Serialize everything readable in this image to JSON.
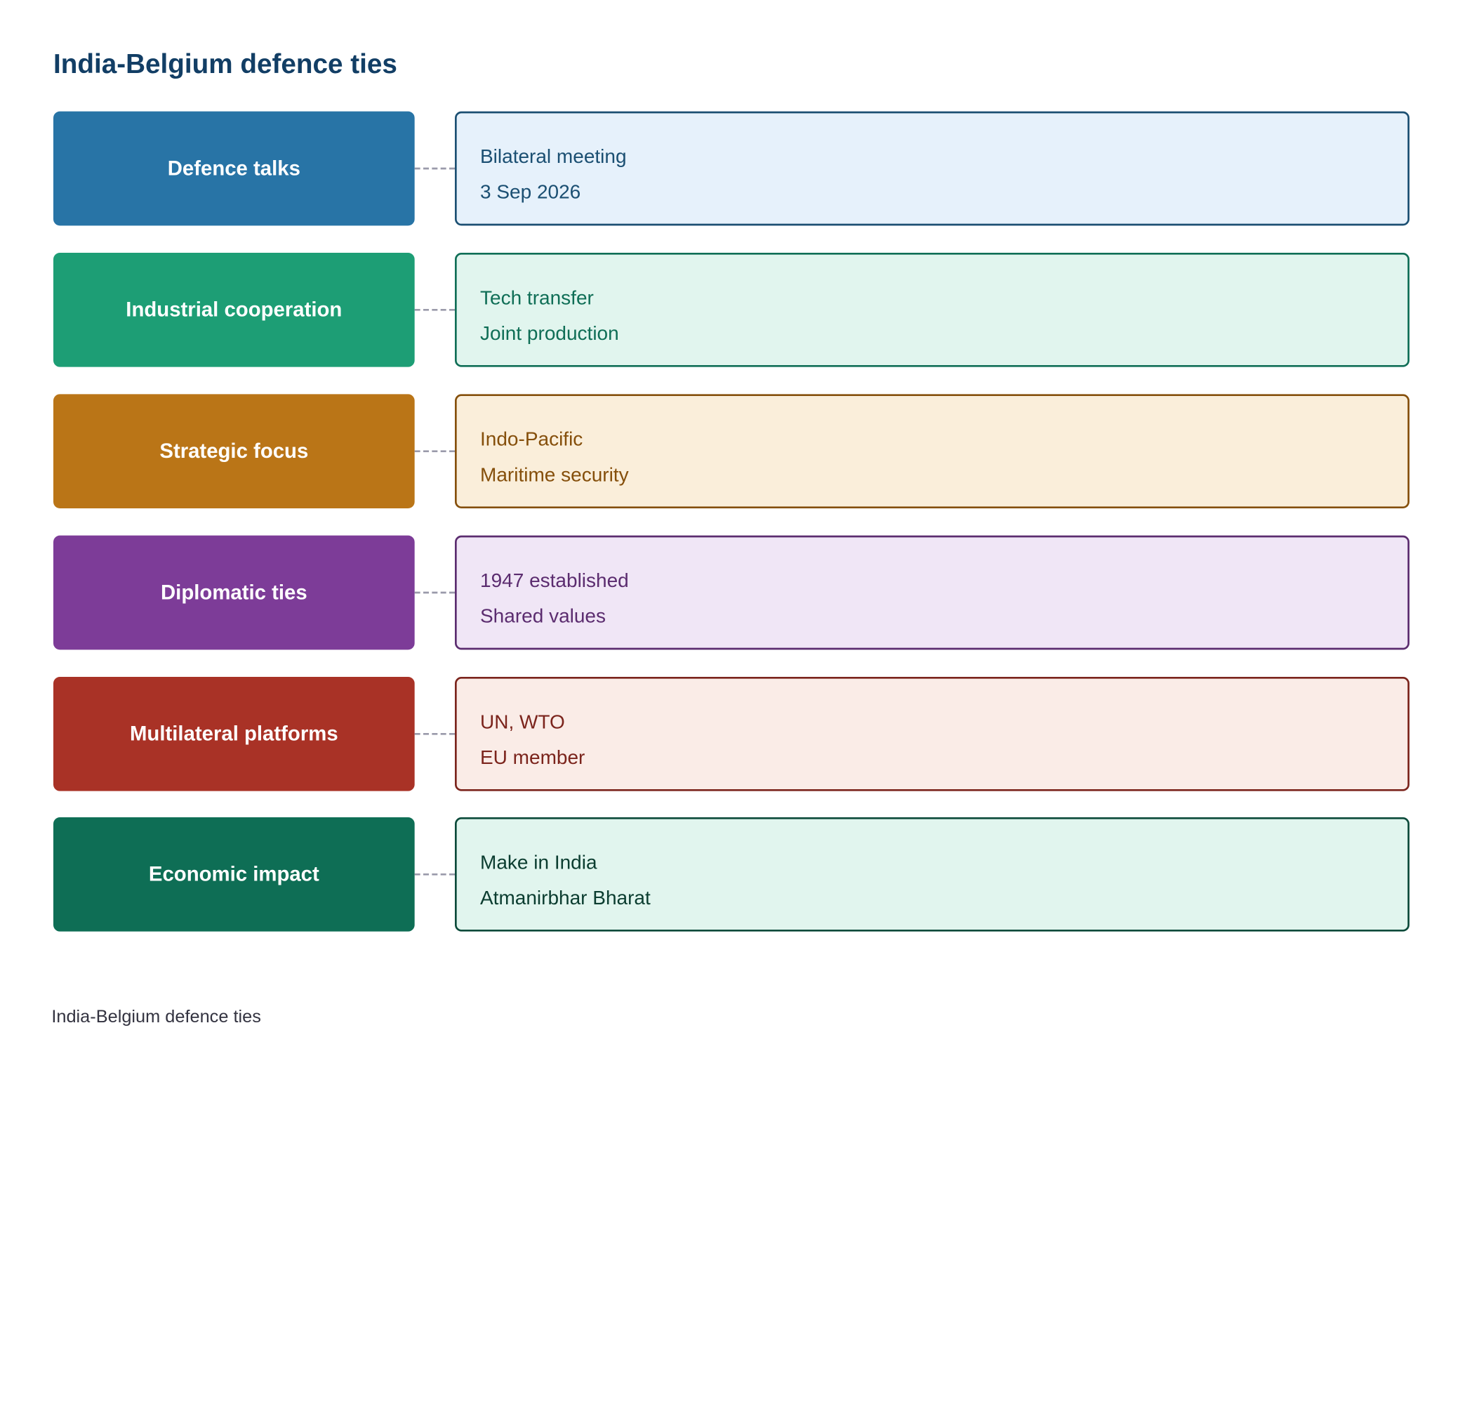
{
  "title": "India-Belgium defence ties",
  "caption": "India-Belgium defence ties",
  "rows": [
    {
      "label": "Defence talks",
      "details": [
        "Bilateral meeting",
        "3 Sep 2026"
      ],
      "colors": {
        "label_bg": "#2874a6",
        "detail_bg": "#e6f1fb",
        "detail_border": "#1b4f72",
        "detail_text": "#1b4f72"
      }
    },
    {
      "label": "Industrial cooperation",
      "details": [
        "Tech transfer",
        "Joint production"
      ],
      "colors": {
        "label_bg": "#1d9e75",
        "detail_bg": "#e1f5ee",
        "detail_border": "#0f6e56",
        "detail_text": "#0f6e56"
      }
    },
    {
      "label": "Strategic focus",
      "details": [
        "Indo-Pacific",
        "Maritime security"
      ],
      "colors": {
        "label_bg": "#ba7517",
        "detail_bg": "#faeeda",
        "detail_border": "#854f0b",
        "detail_text": "#854f0b"
      }
    },
    {
      "label": "Diplomatic ties",
      "details": [
        "1947 established",
        "Shared values"
      ],
      "colors": {
        "label_bg": "#7d3c98",
        "detail_bg": "#f0e6f6",
        "detail_border": "#5b2c6f",
        "detail_text": "#5b2c6f"
      }
    },
    {
      "label": "Multilateral platforms",
      "details": [
        "UN, WTO",
        "EU member"
      ],
      "colors": {
        "label_bg": "#a93226",
        "detail_bg": "#faece7",
        "detail_border": "#7b241c",
        "detail_text": "#7b241c"
      }
    },
    {
      "label": "Economic impact",
      "details": [
        "Make in India",
        "Atmanirbhar Bharat"
      ],
      "colors": {
        "label_bg": "#0e6e55",
        "detail_bg": "#e1f5ee",
        "detail_border": "#0b4a3a",
        "detail_text": "#0b3d30"
      }
    }
  ]
}
